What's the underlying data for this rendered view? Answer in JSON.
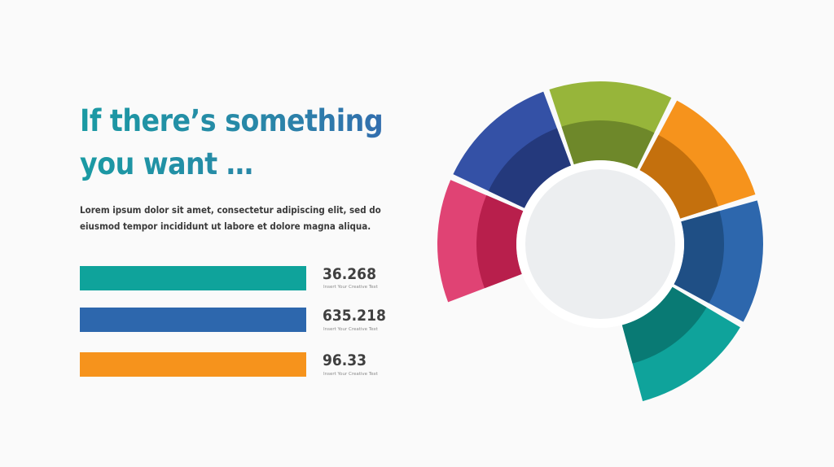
{
  "title": "If there’s something you want …",
  "body": "Lorem ipsum dolor sit amet, consectetur adipiscing elit, sed do eiusmod tempor incididunt ut labore et dolore magna aliqua.",
  "stats": [
    {
      "value": "36.268",
      "caption": "Insert Your Creative Text",
      "color": "#0fa39b"
    },
    {
      "value": "635.218",
      "caption": "Insert Your Creative Text",
      "color": "#2d67ad"
    },
    {
      "value": "96.33",
      "caption": "Insert Your Creative Text",
      "color": "#f6931c"
    }
  ],
  "chart_data": {
    "type": "pie",
    "style": "donut",
    "categories": [
      "Pink",
      "Navy",
      "Green",
      "Orange",
      "Blue",
      "Teal"
    ],
    "values": [
      13,
      13,
      13,
      13,
      13,
      13
    ],
    "colors": [
      "#e04374",
      "#3451a6",
      "#97b53a",
      "#f6931c",
      "#2d67ad",
      "#0fa39b"
    ],
    "dark_colors": [
      "#b81f4c",
      "#24397c",
      "#6e882a",
      "#c4700d",
      "#1f4f85",
      "#097a74"
    ],
    "gap_after": "Teal",
    "center_fill": "#eceef0",
    "grid": false,
    "legend": "none"
  }
}
